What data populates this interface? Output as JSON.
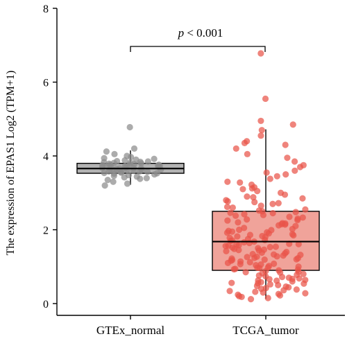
{
  "chart_data": {
    "type": "box",
    "ylabel": "The expression of EPAS1 Log2 (TPM+1)",
    "ylim": [
      0,
      8
    ],
    "yticks": [
      0,
      2,
      4,
      6,
      8
    ],
    "grid": false,
    "significance": {
      "prefix": "p",
      "rest": " < 0.001"
    },
    "groups": [
      {
        "name": "GTEx_normal",
        "box_color": "#b3b3b3",
        "point_color": "#8c8c8c",
        "q1": 3.53,
        "median": 3.66,
        "q3": 3.8,
        "whisker_low": 3.22,
        "whisker_high": 4.15,
        "points": [
          4.78,
          4.2,
          4.12,
          4.05,
          4.0,
          3.97,
          3.94,
          3.92,
          3.9,
          3.88,
          3.86,
          3.85,
          3.84,
          3.83,
          3.82,
          3.81,
          3.8,
          3.79,
          3.78,
          3.77,
          3.76,
          3.75,
          3.74,
          3.73,
          3.72,
          3.71,
          3.7,
          3.69,
          3.68,
          3.67,
          3.66,
          3.65,
          3.64,
          3.63,
          3.62,
          3.61,
          3.6,
          3.59,
          3.58,
          3.57,
          3.56,
          3.55,
          3.54,
          3.53,
          3.52,
          3.5,
          3.48,
          3.46,
          3.44,
          3.42,
          3.4,
          3.38,
          3.35,
          3.3,
          3.25,
          3.2,
          3.68,
          3.72,
          3.62,
          3.58,
          3.76,
          3.66
        ]
      },
      {
        "name": "TCGA_tumor",
        "box_color": "#f0a39a",
        "point_color": "#e9554a",
        "q1": 0.9,
        "median": 1.68,
        "q3": 2.5,
        "whisker_low": 0.13,
        "whisker_high": 4.72,
        "points": [
          6.78,
          5.55,
          4.95,
          4.85,
          4.7,
          4.55,
          4.4,
          4.35,
          4.3,
          4.2,
          4.05,
          3.95,
          3.85,
          3.75,
          3.7,
          3.6,
          3.5,
          3.45,
          3.38,
          3.3,
          3.22,
          3.15,
          3.1,
          3.05,
          3.0,
          2.95,
          2.9,
          2.85,
          2.8,
          2.75,
          2.7,
          2.65,
          2.6,
          2.55,
          2.5,
          2.48,
          2.45,
          2.4,
          2.38,
          2.35,
          2.3,
          2.28,
          2.25,
          2.2,
          2.18,
          2.15,
          2.12,
          2.1,
          2.05,
          2.02,
          2.0,
          1.97,
          1.95,
          1.92,
          1.9,
          1.88,
          1.85,
          1.82,
          1.8,
          1.78,
          1.75,
          1.72,
          1.7,
          1.68,
          1.66,
          1.64,
          1.62,
          1.6,
          1.58,
          1.56,
          1.54,
          1.52,
          1.5,
          1.48,
          1.46,
          1.44,
          1.42,
          1.4,
          1.38,
          1.36,
          1.34,
          1.32,
          1.3,
          1.28,
          1.26,
          1.24,
          1.22,
          1.2,
          1.18,
          1.16,
          1.14,
          1.12,
          1.1,
          1.08,
          1.06,
          1.04,
          1.02,
          1.0,
          0.98,
          0.96,
          0.94,
          0.92,
          0.9,
          0.88,
          0.86,
          0.84,
          0.82,
          0.8,
          0.78,
          0.76,
          0.74,
          0.72,
          0.7,
          0.68,
          0.66,
          0.64,
          0.62,
          0.6,
          0.58,
          0.56,
          0.54,
          0.52,
          0.5,
          0.48,
          0.46,
          0.44,
          0.42,
          0.4,
          0.38,
          0.36,
          0.34,
          0.32,
          0.3,
          0.28,
          0.26,
          0.24,
          0.22,
          0.2,
          0.18,
          0.15,
          0.12,
          2.62,
          2.33,
          1.93,
          1.57,
          1.27,
          1.07,
          2.72,
          2.42,
          2.14,
          1.86,
          1.61,
          1.33,
          0.97,
          0.67,
          3.28,
          2.88,
          2.52,
          2.26,
          1.99,
          1.71,
          1.45,
          1.19,
          0.85,
          0.55,
          3.55,
          3.12,
          2.77,
          2.46,
          2.17,
          1.83,
          1.53,
          1.23,
          0.93,
          0.63
        ]
      }
    ]
  }
}
